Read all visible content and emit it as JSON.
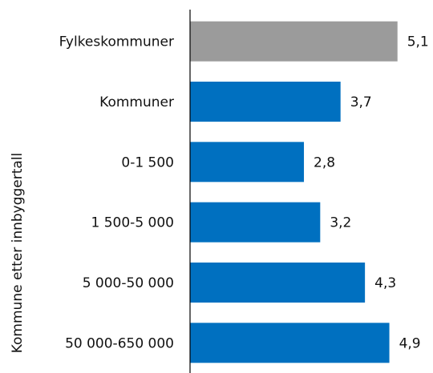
{
  "chart_data": {
    "type": "barh",
    "y_label": "Kommune etter innbyggertall",
    "categories": [
      "Fylkeskommuner",
      "Kommuner",
      "0-1 500",
      "1 500-5 000",
      "5 000-50 000",
      "50 000-650 000"
    ],
    "values": [
      5.1,
      3.7,
      2.8,
      3.2,
      4.3,
      4.9
    ],
    "value_labels": [
      "5,1",
      "3,7",
      "2,8",
      "3,2",
      "4,3",
      "4,9"
    ],
    "colors": [
      "#9b9b9b",
      "#0070c0",
      "#0070c0",
      "#0070c0",
      "#0070c0",
      "#0070c0"
    ],
    "xlim": [
      0,
      5.5
    ]
  }
}
